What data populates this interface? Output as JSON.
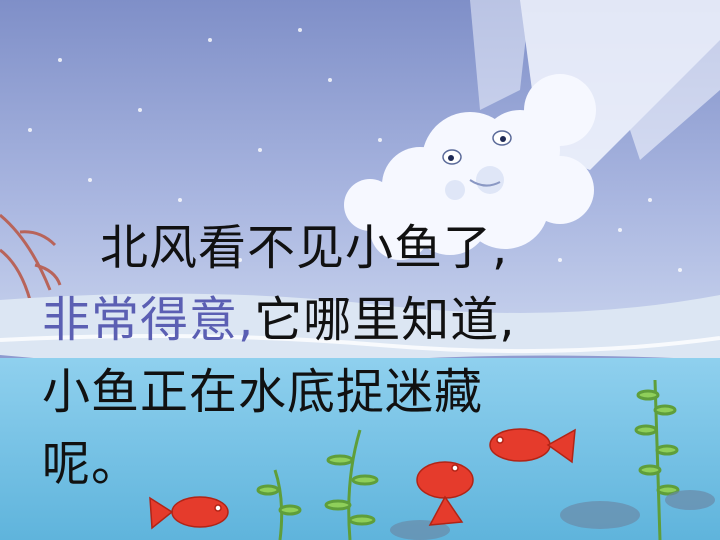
{
  "slide": {
    "colors": {
      "sky_top": "#7f8fc8",
      "sky_mid": "#a9b6e0",
      "ice": "#d9e4f2",
      "water": "#79c4e6",
      "fish": "#e53b2c",
      "text": "#111111",
      "highlight_text": "#5b5fb3"
    },
    "text": {
      "line1": "北风看不见小鱼了,",
      "line2_highlight": "非常得意,",
      "line2_rest": "它哪里知道,",
      "line3": "小鱼正在水底捉迷藏",
      "line4": "呢。"
    },
    "illustration": {
      "elements": [
        "north-wind-cloud",
        "snowflakes",
        "frozen-ice-surface",
        "water",
        "red-fish",
        "water-plants",
        "bare-branch"
      ]
    }
  }
}
